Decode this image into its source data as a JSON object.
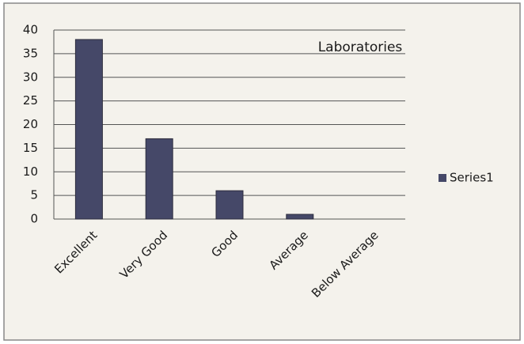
{
  "chart_data": {
    "type": "bar",
    "title": "Laboratories",
    "categories": [
      "Excellent",
      "Very Good",
      "Good",
      "Average",
      "Below Average"
    ],
    "series": [
      {
        "name": "Series1",
        "color": "#454868",
        "values": [
          38,
          17,
          6,
          1,
          0
        ]
      }
    ],
    "ylim": [
      0,
      40
    ],
    "yticks": [
      0,
      5,
      10,
      15,
      20,
      25,
      30,
      35,
      40
    ],
    "grid": true,
    "legend": "right"
  }
}
